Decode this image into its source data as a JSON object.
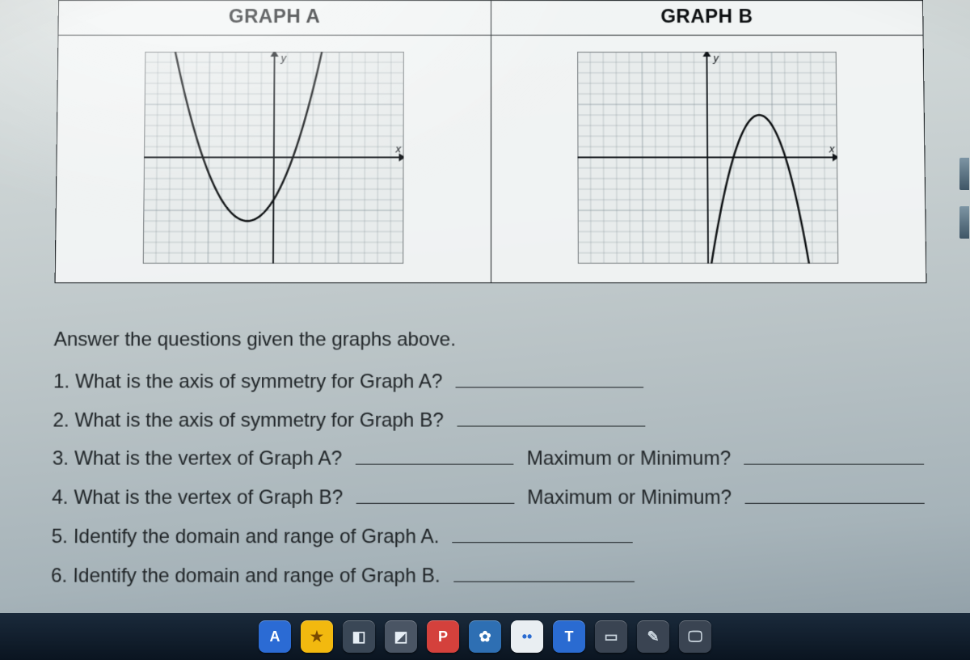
{
  "table": {
    "header_a": "GRAPH A",
    "header_b": "GRAPH B"
  },
  "graphA": {
    "type": "parabola",
    "axis_label_y": "y",
    "axis_label_x": "x",
    "xlim": [
      -10,
      10
    ],
    "ylim": [
      -10,
      10
    ],
    "grid_step": 1,
    "axis_color": "#101418",
    "grid_color": "#7e8b92",
    "curve_color": "#0b0e10",
    "curve_width": 2.4,
    "background_color": "#e8ecec",
    "vertex": [
      -2,
      -6
    ],
    "a": 0.5,
    "direction": "up"
  },
  "graphB": {
    "type": "parabola",
    "axis_label_y": "y",
    "axis_label_x": "x",
    "xlim": [
      -10,
      10
    ],
    "ylim": [
      -10,
      10
    ],
    "grid_step": 1,
    "axis_color": "#101418",
    "grid_color": "#7e8b92",
    "curve_color": "#0b0e10",
    "curve_width": 2.4,
    "background_color": "#e8ecec",
    "vertex": [
      4,
      4
    ],
    "a": -1,
    "direction": "down"
  },
  "questions": {
    "lead": "Answer the questions given the graphs above.",
    "q1": "1. What is the axis of symmetry for Graph A?",
    "q2": "2. What is the axis of symmetry for Graph B?",
    "q3": "3. What is the vertex of Graph A?",
    "q3b": "Maximum or Minimum?",
    "q4": "4. What is the vertex of Graph B?",
    "q4b": "Maximum or Minimum?",
    "q5": "5. Identify the domain and range of Graph A.",
    "q6": "6. Identify the domain and range of Graph B."
  },
  "taskbar": {
    "icons": [
      {
        "bg": "#2b6bd4",
        "fg": "#ffffff",
        "glyph": "A"
      },
      {
        "bg": "#f2b90f",
        "fg": "#7a4a00",
        "glyph": "★"
      },
      {
        "bg": "#3a4756",
        "fg": "#e6eef5",
        "glyph": "◧"
      },
      {
        "bg": "#4a5564",
        "fg": "#e6eef5",
        "glyph": "◩"
      },
      {
        "bg": "#d4413c",
        "fg": "#ffffff",
        "glyph": "P"
      },
      {
        "bg": "#2e6fb3",
        "fg": "#ffffff",
        "glyph": "✿"
      },
      {
        "bg": "#e9eef2",
        "fg": "#2a6bd1",
        "glyph": "••"
      },
      {
        "bg": "#2a6bd1",
        "fg": "#ffffff",
        "glyph": "T"
      },
      {
        "bg": "#3a4452",
        "fg": "#c9d4dd",
        "glyph": "▭"
      },
      {
        "bg": "#3a4452",
        "fg": "#c9d4dd",
        "glyph": "✎"
      },
      {
        "bg": "#3a4452",
        "fg": "#c9d4dd",
        "glyph": "🖵"
      }
    ]
  }
}
